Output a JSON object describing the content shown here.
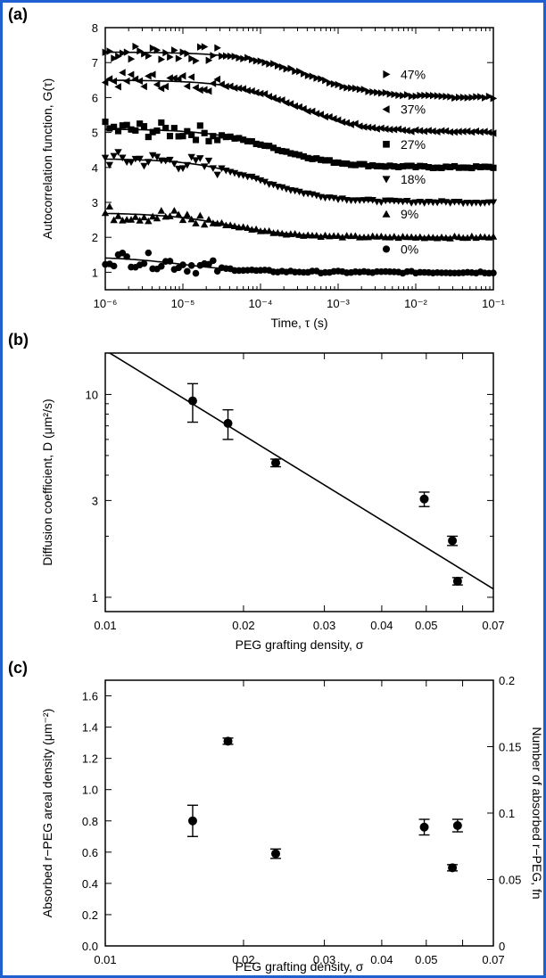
{
  "colors": {
    "frame": "#1f5fd0",
    "ink": "#000000"
  },
  "chart_data": [
    {
      "panel": "(a)",
      "type": "scatter",
      "xlabel": "Time, τ (s)",
      "ylabel": "Autocorrelation function, G(τ)",
      "xscale": "log",
      "xlim": [
        1e-06,
        0.1
      ],
      "ylim": [
        0.5,
        8
      ],
      "xticks": [
        1e-06,
        1e-05,
        0.0001,
        0.001,
        0.01,
        0.1
      ],
      "xticklabels": [
        "10⁻⁶",
        "10⁻⁵",
        "10⁻⁴",
        "10⁻³",
        "10⁻²",
        "10⁻¹"
      ],
      "yticks": [
        1,
        2,
        3,
        4,
        5,
        6,
        7,
        8
      ],
      "legend_position": "right",
      "series": [
        {
          "name": "47%",
          "marker": "triangle-right",
          "baseline": 6,
          "amplitude": 1.3,
          "tau": 0.0004
        },
        {
          "name": "37%",
          "marker": "triangle-left",
          "baseline": 5,
          "amplitude": 1.5,
          "tau": 0.0003
        },
        {
          "name": "27%",
          "marker": "square",
          "baseline": 4,
          "amplitude": 1.1,
          "tau": 0.00015
        },
        {
          "name": "18%",
          "marker": "triangle-down",
          "baseline": 3,
          "amplitude": 1.25,
          "tau": 0.0001
        },
        {
          "name": "9%",
          "marker": "triangle-up",
          "baseline": 2,
          "amplitude": 0.7,
          "tau": 4e-05
        },
        {
          "name": "0%",
          "marker": "circle",
          "baseline": 1,
          "amplitude": 0.45,
          "tau": 1e-05
        }
      ]
    },
    {
      "panel": "(b)",
      "type": "scatter",
      "xlabel": "PEG grafting density, σ",
      "ylabel": "Diffusion coefficient, D (μm²/s)",
      "xscale": "log",
      "yscale": "log",
      "xlim": [
        0.01,
        0.07
      ],
      "ylim": [
        0.85,
        16
      ],
      "xticks": [
        0.01,
        0.02,
        0.03,
        0.04,
        0.05,
        0.06,
        0.07
      ],
      "xticklabels": [
        "0.01",
        "0.02",
        "0.03",
        "0.04",
        "0.05",
        "",
        "0.07"
      ],
      "yticks": [
        1,
        3,
        10
      ],
      "points": [
        {
          "x": 0.0155,
          "y": 9.3,
          "err": 2.0
        },
        {
          "x": 0.0185,
          "y": 7.2,
          "err": 1.2
        },
        {
          "x": 0.0235,
          "y": 4.6,
          "err": 0.2
        },
        {
          "x": 0.0495,
          "y": 3.05,
          "err": 0.25
        },
        {
          "x": 0.057,
          "y": 1.9,
          "err": 0.1
        },
        {
          "x": 0.0585,
          "y": 1.2,
          "err": 0.05
        }
      ],
      "fit_line": [
        [
          0.01,
          16.5
        ],
        [
          0.07,
          1.1
        ]
      ]
    },
    {
      "panel": "(c)",
      "type": "scatter",
      "xlabel": "PEG grafting density, σ",
      "ylabel": "Absorbed r−PEG areal density (μm⁻²)",
      "y2label": "Number of absorbed r−PEG, fn",
      "xscale": "log",
      "xlim": [
        0.01,
        0.07
      ],
      "ylim": [
        0,
        1.7
      ],
      "y2lim": [
        0,
        0.2
      ],
      "xticks": [
        0.01,
        0.02,
        0.03,
        0.04,
        0.05,
        0.06,
        0.07
      ],
      "xticklabels": [
        "0.01",
        "0.02",
        "0.03",
        "0.04",
        "0.05",
        "",
        "0.07"
      ],
      "yticks": [
        0.0,
        0.2,
        0.4,
        0.6,
        0.8,
        1.0,
        1.2,
        1.4,
        1.6
      ],
      "yticklabels": [
        "0.0",
        "0.2",
        "0.4",
        "0.6",
        "0.8",
        "1.0",
        "1.2",
        "1.4",
        "1.6"
      ],
      "y2ticks": [
        0,
        0.05,
        0.1,
        0.15,
        0.2
      ],
      "y2ticklabels": [
        "0",
        "0.05",
        "0.1",
        "0.15",
        "0.2"
      ],
      "points": [
        {
          "x": 0.0155,
          "y": 0.8,
          "err": 0.1
        },
        {
          "x": 0.0185,
          "y": 1.31,
          "err": 0.02
        },
        {
          "x": 0.0235,
          "y": 0.59,
          "err": 0.03
        },
        {
          "x": 0.0495,
          "y": 0.76,
          "err": 0.05
        },
        {
          "x": 0.057,
          "y": 0.5,
          "err": 0.02
        },
        {
          "x": 0.0585,
          "y": 0.77,
          "err": 0.04
        }
      ]
    }
  ]
}
